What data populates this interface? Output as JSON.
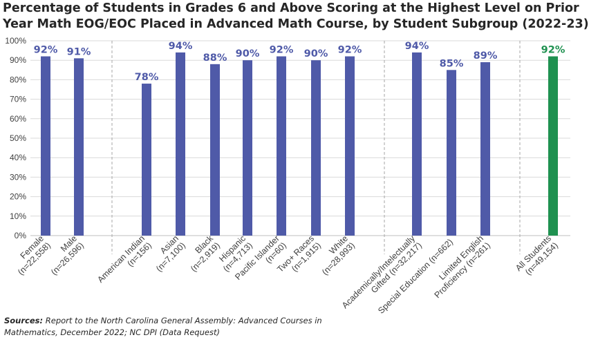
{
  "chart_data": {
    "type": "bar",
    "title_lines": [
      "Percentage of Students in Grades 6 and Above Scoring at the Highest Level on Prior",
      "Year Math EOG/EOC Placed in Advanced Math Course, by Student Subgroup (2022-23)"
    ],
    "ylim": [
      0,
      100
    ],
    "y_ticks": [
      "0%",
      "10%",
      "20%",
      "30%",
      "40%",
      "50%",
      "60%",
      "70%",
      "80%",
      "90%",
      "100%"
    ],
    "grid": true,
    "legend": "none",
    "colors": {
      "bar": "#4f5aa8",
      "total_bar": "#1f9150",
      "label": "#4f5aa8",
      "total_label": "#1f9150"
    },
    "groups": [
      {
        "categories": [
          {
            "label": [
              "Female",
              "(n=22,558)"
            ],
            "value": 92,
            "value_label": "92%"
          },
          {
            "label": [
              "Male",
              "(n=26,596)"
            ],
            "value": 91,
            "value_label": "91%"
          }
        ]
      },
      {
        "categories": [
          {
            "label": [
              "American Indian",
              "(n=156)"
            ],
            "value": 78,
            "value_label": "78%"
          },
          {
            "label": [
              "Asian",
              "(n=7,100)"
            ],
            "value": 94,
            "value_label": "94%"
          },
          {
            "label": [
              "Black",
              "(n=2,919)"
            ],
            "value": 88,
            "value_label": "88%"
          },
          {
            "label": [
              "Hispanic",
              "(n=4,713)"
            ],
            "value": 90,
            "value_label": "90%"
          },
          {
            "label": [
              "Pacific Islander",
              "(n=60)"
            ],
            "value": 92,
            "value_label": "92%"
          },
          {
            "label": [
              "Two+ Races",
              "(n=1,915)"
            ],
            "value": 90,
            "value_label": "90%"
          },
          {
            "label": [
              "White",
              "(n=28,993)"
            ],
            "value": 92,
            "value_label": "92%"
          }
        ]
      },
      {
        "categories": [
          {
            "label": [
              "Academically/Intelectually",
              "Gifted (n=32,217)"
            ],
            "value": 94,
            "value_label": "94%"
          },
          {
            "label": [
              "Special Education (n=662)"
            ],
            "value": 85,
            "value_label": "85%"
          },
          {
            "label": [
              "Limited English",
              "Proficiency (n=261)"
            ],
            "value": 89,
            "value_label": "89%"
          }
        ]
      },
      {
        "categories": [
          {
            "label": [
              "All Students",
              "(n=49,154)"
            ],
            "value": 92,
            "value_label": "92%",
            "total": true
          }
        ]
      }
    ]
  },
  "source": {
    "prefix": "Sources:",
    "text": "Report to the North Carolina General Assembly: Advanced Courses in Mathematics, December 2022; NC DPI (Data Request)"
  }
}
